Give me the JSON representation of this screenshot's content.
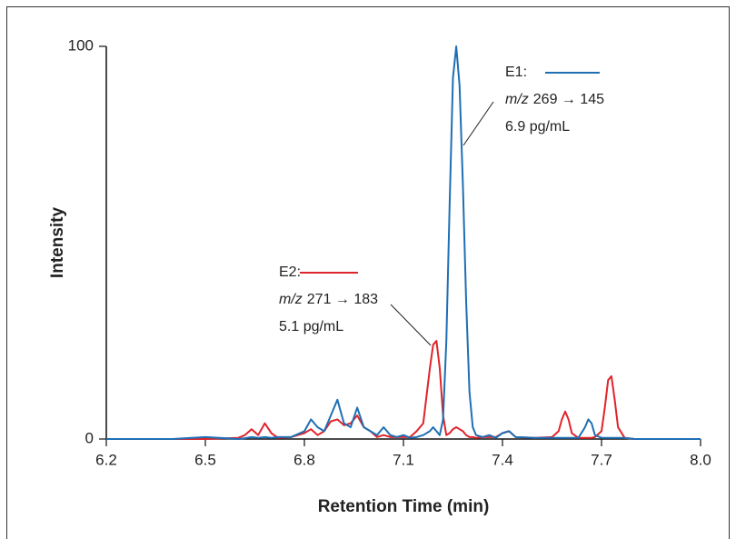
{
  "chart_data": {
    "type": "line",
    "x_label": "Retention Time (min)",
    "y_label": "Intensity",
    "xlim": [
      6.2,
      8.0
    ],
    "xticks": [
      6.2,
      6.5,
      6.8,
      7.1,
      7.4,
      7.7,
      {
        "value": 8.0,
        "label": "8.0"
      }
    ],
    "ylim": [
      0,
      100
    ],
    "yticks": [
      0,
      100
    ],
    "x": [
      6.2,
      6.4,
      6.5,
      6.6,
      6.62,
      6.64,
      6.66,
      6.68,
      6.7,
      6.72,
      6.76,
      6.8,
      6.82,
      6.84,
      6.86,
      6.88,
      6.9,
      6.92,
      6.94,
      6.96,
      6.98,
      7.0,
      7.02,
      7.04,
      7.06,
      7.08,
      7.1,
      7.12,
      7.14,
      7.16,
      7.18,
      7.19,
      7.2,
      7.21,
      7.22,
      7.23,
      7.24,
      7.25,
      7.26,
      7.27,
      7.28,
      7.29,
      7.3,
      7.31,
      7.32,
      7.34,
      7.36,
      7.38,
      7.4,
      7.42,
      7.44,
      7.5,
      7.55,
      7.57,
      7.58,
      7.59,
      7.6,
      7.61,
      7.63,
      7.65,
      7.66,
      7.67,
      7.68,
      7.7,
      7.71,
      7.72,
      7.73,
      7.74,
      7.75,
      7.77,
      7.8,
      8.0
    ],
    "series": [
      {
        "name": "E1:",
        "color": "#1f6fb4",
        "mz": "m/z",
        "transition": "269 → 145",
        "conc": "6.9 pg/mL",
        "values": [
          0,
          0,
          0.5,
          0,
          0.2,
          0.5,
          0.3,
          0.5,
          0.3,
          0.5,
          0.5,
          2,
          5,
          3,
          2,
          6,
          10,
          4,
          3,
          8,
          3,
          2,
          1,
          3,
          1,
          0.5,
          1,
          0.3,
          0.5,
          1,
          2,
          3,
          2,
          1,
          5,
          25,
          60,
          92,
          100,
          90,
          65,
          35,
          12,
          3,
          1,
          0.5,
          1,
          0.3,
          1.5,
          2,
          0.5,
          0.3,
          0.3,
          0.3,
          0.3,
          0.3,
          0.3,
          0.3,
          0.3,
          3,
          5,
          4,
          1,
          0.3,
          0.3,
          0.3,
          0.3,
          0.3,
          0.3,
          0.3,
          0,
          0
        ]
      },
      {
        "name": "E2:",
        "color": "#e0242b",
        "mz": "m/z",
        "transition": "271 → 183",
        "conc": "5.1 pg/mL",
        "values": [
          0,
          0,
          0,
          0.3,
          1,
          2.5,
          1,
          4,
          1.5,
          0.3,
          0.5,
          1.5,
          2.5,
          1,
          2,
          4.5,
          5,
          3.5,
          4,
          6,
          3,
          2,
          0.5,
          1,
          0.5,
          0.5,
          0.5,
          0.5,
          2,
          4,
          18,
          24,
          25,
          18,
          6,
          1,
          1.5,
          2.5,
          3,
          2.5,
          2,
          1,
          0.5,
          0.5,
          0.3,
          0.5,
          0.5,
          0.5,
          1.5,
          2,
          0.5,
          0.3,
          0.5,
          2,
          5,
          7,
          5,
          1.5,
          0.3,
          0.3,
          0.3,
          0.3,
          0.5,
          2,
          8,
          15,
          16,
          10,
          3,
          0.3,
          0,
          0
        ]
      }
    ]
  }
}
